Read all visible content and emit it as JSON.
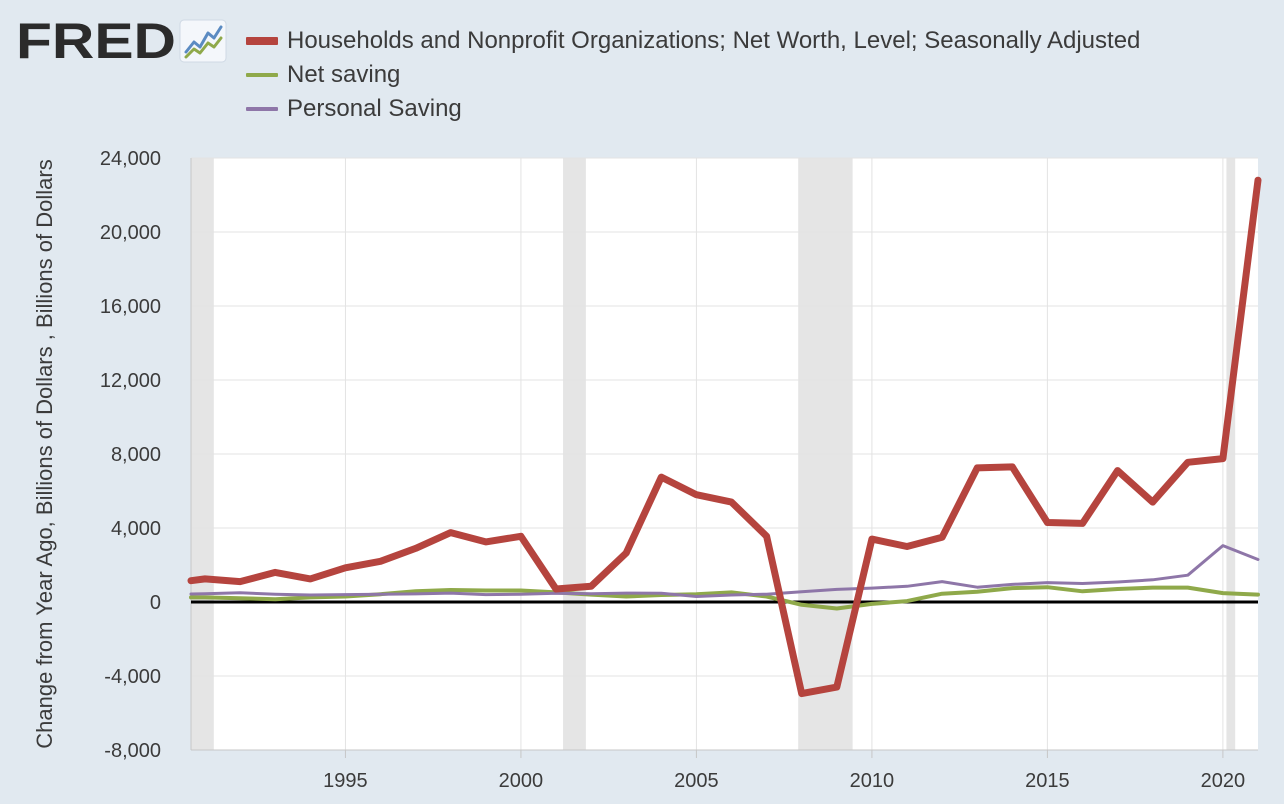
{
  "logo": {
    "text": "FRED",
    "icon": "fred-chart-icon"
  },
  "chart_data": {
    "type": "line",
    "title": "",
    "ylabel": "Change from Year Ago, Billions of Dollars , Billions of Dollars",
    "xlabel": "",
    "ylim": [
      -8000,
      24000
    ],
    "xlim": [
      1990.6,
      2021.0
    ],
    "yticks": [
      "24,000",
      "20,000",
      "16,000",
      "12,000",
      "8,000",
      "4,000",
      "0",
      "-4,000",
      "-8,000"
    ],
    "ytick_values": [
      24000,
      20000,
      16000,
      12000,
      8000,
      4000,
      0,
      -4000,
      -8000
    ],
    "xticks": [
      "1995",
      "2000",
      "2005",
      "2010",
      "2015",
      "2020"
    ],
    "xtick_values": [
      1995,
      2000,
      2005,
      2010,
      2015,
      2020
    ],
    "recessions": [
      [
        1990.6,
        1991.25
      ],
      [
        2001.2,
        2001.85
      ],
      [
        2007.9,
        2009.45
      ],
      [
        2020.1,
        2020.35
      ]
    ],
    "grid": true,
    "legend_position": "top",
    "zero_line": true,
    "series": [
      {
        "name": "Households and Nonprofit Organizations; Net Worth, Level; Seasonally Adjusted",
        "color": "#b5443e",
        "width": 7,
        "x": [
          1990.6,
          1991,
          1992,
          1993,
          1994,
          1995,
          1996,
          1997,
          1998,
          1999,
          2000,
          2001,
          2002,
          2003,
          2004,
          2005,
          2006,
          2007,
          2008,
          2009,
          2010,
          2011,
          2012,
          2013,
          2014,
          2015,
          2016,
          2017,
          2018,
          2019,
          2020,
          2021
        ],
        "values": [
          1150,
          1250,
          1100,
          1600,
          1250,
          1850,
          2200,
          2900,
          3750,
          3250,
          3550,
          700,
          850,
          2650,
          6750,
          5800,
          5400,
          3550,
          -4950,
          -4600,
          3400,
          3000,
          3500,
          7250,
          7300,
          4300,
          4250,
          7100,
          5400,
          7550,
          7750,
          22800
        ]
      },
      {
        "name": "Net saving",
        "color": "#8fa94a",
        "width": 4,
        "x": [
          1990.6,
          1991,
          1992,
          1993,
          1994,
          1995,
          1996,
          1997,
          1998,
          1999,
          2000,
          2001,
          2002,
          2003,
          2004,
          2005,
          2006,
          2007,
          2008,
          2009,
          2010,
          2011,
          2012,
          2013,
          2014,
          2015,
          2016,
          2017,
          2018,
          2019,
          2020,
          2021
        ],
        "values": [
          250,
          250,
          200,
          150,
          250,
          300,
          420,
          580,
          650,
          620,
          620,
          520,
          400,
          300,
          380,
          420,
          520,
          300,
          -150,
          -350,
          -100,
          50,
          450,
          550,
          750,
          800,
          580,
          700,
          780,
          780,
          480,
          400
        ]
      },
      {
        "name": "Personal Saving",
        "color": "#8e76a8",
        "width": 3,
        "x": [
          1990.6,
          1991,
          1992,
          1993,
          1994,
          1995,
          1996,
          1997,
          1998,
          1999,
          2000,
          2001,
          2002,
          2003,
          2004,
          2005,
          2006,
          2007,
          2008,
          2009,
          2010,
          2011,
          2012,
          2013,
          2014,
          2015,
          2016,
          2017,
          2018,
          2019,
          2020,
          2021
        ],
        "values": [
          430,
          450,
          500,
          420,
          380,
          400,
          420,
          440,
          480,
          400,
          420,
          470,
          450,
          480,
          470,
          300,
          380,
          420,
          550,
          680,
          750,
          850,
          1100,
          800,
          950,
          1050,
          1000,
          1080,
          1200,
          1450,
          3050,
          2300
        ]
      }
    ]
  }
}
